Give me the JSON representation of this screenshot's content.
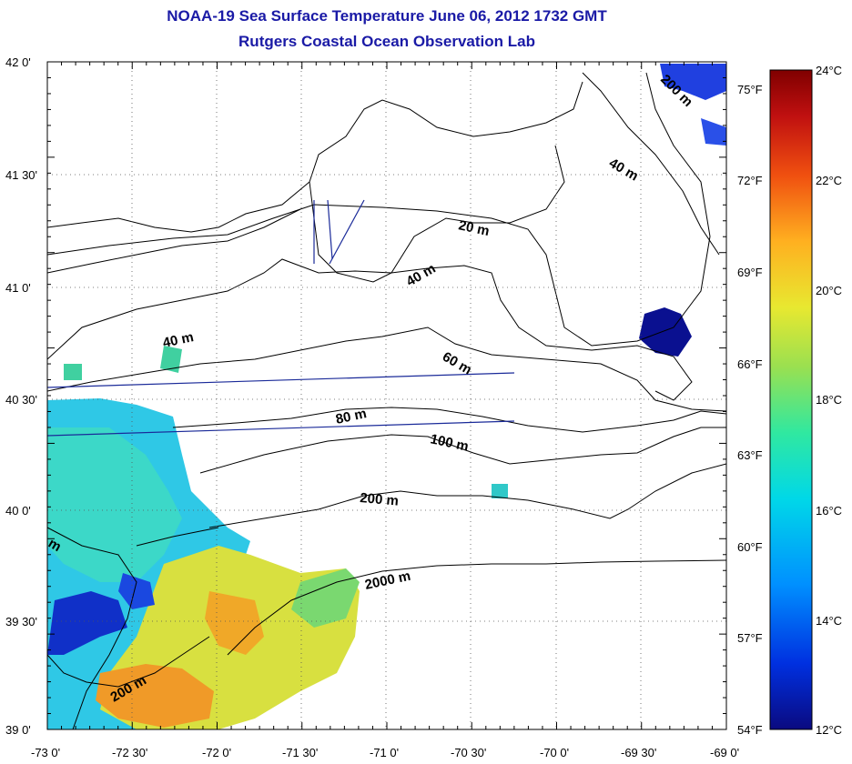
{
  "title": "NOAA-19 Sea Surface Temperature June 06, 2012 1732 GMT",
  "subtitle": "Rutgers Coastal Ocean Observation Lab",
  "lat_labels": [
    "42 0'",
    "41 30'",
    "41 0'",
    "40 30'",
    "40 0'",
    "39 30'",
    "39 0'"
  ],
  "lon_labels": [
    "-73 0'",
    "-72 30'",
    "-72 0'",
    "-71 30'",
    "-71 0'",
    "-70 30'",
    "-70 0'",
    "-69 30'",
    "-69 0'"
  ],
  "fahrenheit_labels": [
    "75°F",
    "72°F",
    "69°F",
    "66°F",
    "63°F",
    "60°F",
    "57°F",
    "54°F"
  ],
  "celsius_labels": [
    "24°C",
    "22°C",
    "20°C",
    "18°C",
    "16°C",
    "14°C",
    "12°C"
  ],
  "contour_labels": [
    "200 m",
    "40 m",
    "20 m",
    "40 m",
    "40 m",
    "60 m",
    "80 m",
    "100 m",
    "200 m",
    "2000 m",
    "200 m",
    "m"
  ],
  "colors": {
    "title": "#1a1aa6",
    "track": "#1a2a99",
    "scale": [
      "#0a0a80",
      "#0030e0",
      "#0090ff",
      "#00d8e8",
      "#30e8a0",
      "#9ae050",
      "#e8e830",
      "#ffb020",
      "#f05010",
      "#c01010",
      "#800000"
    ]
  }
}
